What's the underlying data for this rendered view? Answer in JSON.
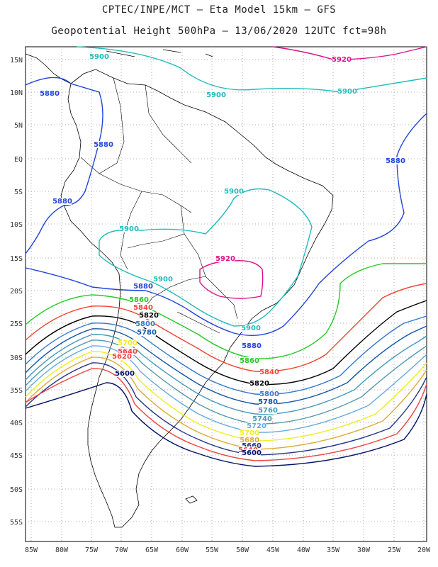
{
  "title": {
    "line1": "CPTEC/INPE/MCT –  Eta Model 15km – GFS",
    "line2": "Geopotential Height 500hPa – 13/06/2020 12UTC fct=98h"
  },
  "axes": {
    "lat_labels": [
      "15N",
      "10N",
      "5N",
      "EQ",
      "5S",
      "10S",
      "15S",
      "20S",
      "25S",
      "30S",
      "35S",
      "40S",
      "45S",
      "50S",
      "55S"
    ],
    "lon_labels": [
      "85W",
      "80W",
      "75W",
      "70W",
      "65W",
      "60W",
      "55W",
      "50W",
      "45W",
      "40W",
      "35W",
      "30W",
      "25W",
      "20W"
    ]
  },
  "colors": {
    "c5920": "#dd1188",
    "c5900": "#22bbbb",
    "c5880": "#2244dd",
    "c5860": "#22cc22",
    "c5840": "#ee4433",
    "c5820": "#000000",
    "c5800": "#3377cc",
    "c5780": "#1155aa",
    "c5760": "#4499bb",
    "c5740": "#5599aa",
    "c5720": "#66aadd",
    "c5700": "#eeee22",
    "c5680": "#ddaa33",
    "c5660": "#223388",
    "c5640": "#ee4444",
    "c5600": "#001166",
    "land": "#000000"
  },
  "contour_labels": [
    {
      "text": "5900",
      "color": "c5900"
    },
    {
      "text": "5920",
      "color": "c5920"
    },
    {
      "text": "5900",
      "color": "c5900"
    },
    {
      "text": "5900",
      "color": "c5900"
    },
    {
      "text": "5880",
      "color": "c5880"
    },
    {
      "text": "5880",
      "color": "c5880"
    },
    {
      "text": "5880",
      "color": "c5880"
    },
    {
      "text": "5880",
      "color": "c5880"
    },
    {
      "text": "5900",
      "color": "c5900"
    },
    {
      "text": "5900",
      "color": "c5900"
    },
    {
      "text": "5920",
      "color": "c5920"
    },
    {
      "text": "5900",
      "color": "c5900"
    },
    {
      "text": "5880",
      "color": "c5880"
    },
    {
      "text": "5860",
      "color": "c5860"
    },
    {
      "text": "5840",
      "color": "c5840"
    },
    {
      "text": "5820",
      "color": "c5820"
    },
    {
      "text": "5800",
      "color": "c5800"
    },
    {
      "text": "5780",
      "color": "c5780"
    },
    {
      "text": "5900",
      "color": "c5900"
    },
    {
      "text": "5880",
      "color": "c5880"
    },
    {
      "text": "5860",
      "color": "c5860"
    },
    {
      "text": "5840",
      "color": "c5840"
    },
    {
      "text": "5820",
      "color": "c5820"
    },
    {
      "text": "5800",
      "color": "c5800"
    },
    {
      "text": "5780",
      "color": "c5780"
    },
    {
      "text": "5760",
      "color": "c5760"
    },
    {
      "text": "5740",
      "color": "c5740"
    },
    {
      "text": "5720",
      "color": "c5720"
    },
    {
      "text": "5700",
      "color": "c5700"
    },
    {
      "text": "5680",
      "color": "c5680"
    },
    {
      "text": "5660",
      "color": "c5660"
    },
    {
      "text": "5640",
      "color": "c5640"
    },
    {
      "text": "5600",
      "color": "c5600"
    },
    {
      "text": "5700",
      "color": "c5700"
    },
    {
      "text": "5640",
      "color": "c5640"
    },
    {
      "text": "5620",
      "color": "c5640"
    },
    {
      "text": "5600",
      "color": "c5600"
    }
  ]
}
